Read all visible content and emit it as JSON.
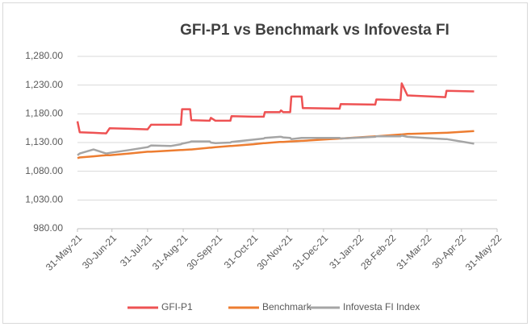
{
  "chart_data": {
    "type": "line",
    "title": "GFI-P1 vs Benchmark vs Infovesta FI",
    "x": [
      "2021-05-31",
      "2021-06-02",
      "2021-06-14",
      "2021-06-25",
      "2021-06-28",
      "2021-07-15",
      "2021-07-31",
      "2021-08-03",
      "2021-08-20",
      "2021-08-29",
      "2021-08-30",
      "2021-09-06",
      "2021-09-07",
      "2021-09-23",
      "2021-09-24",
      "2021-09-28",
      "2021-10-11",
      "2021-10-12",
      "2021-10-31",
      "2021-11-09",
      "2021-11-10",
      "2021-11-23",
      "2021-11-24",
      "2021-11-26",
      "2021-12-02",
      "2021-12-03",
      "2021-12-12",
      "2021-12-13",
      "2022-01-14",
      "2022-01-15",
      "2022-02-14",
      "2022-02-15",
      "2022-03-08",
      "2022-03-09",
      "2022-03-14",
      "2022-04-16",
      "2022-04-17",
      "2022-05-11"
    ],
    "series": [
      {
        "name": "GFI-P1",
        "color": "#ee5253",
        "values": [
          1167,
          1148,
          1147,
          1146,
          1155,
          1154,
          1153,
          1161,
          1161,
          1161,
          1188,
          1188,
          1169,
          1168,
          1173,
          1168,
          1168,
          1176,
          1175,
          1175,
          1183,
          1183,
          1186,
          1183,
          1183,
          1210,
          1210,
          1190,
          1189,
          1197,
          1196,
          1205,
          1204,
          1233,
          1212,
          1209,
          1220,
          1219
        ]
      },
      {
        "name": "Benchmark",
        "color": "#ed7d31",
        "values": [
          1103,
          1104,
          1106,
          1108,
          1108,
          1111,
          1114,
          1114,
          1116,
          1117,
          1117,
          1118,
          1118,
          1121,
          1121,
          1122,
          1124,
          1124,
          1127,
          1129,
          1129,
          1131,
          1131,
          1131,
          1132,
          1132,
          1133,
          1133,
          1137,
          1137,
          1141,
          1141,
          1144,
          1144,
          1145,
          1147,
          1147,
          1150
        ]
      },
      {
        "name": "Infovesta FI Index",
        "color": "#a5a5a5",
        "values": [
          1108,
          1111,
          1118,
          1111,
          1112,
          1117,
          1122,
          1125,
          1124,
          1127,
          1128,
          1131,
          1132,
          1132,
          1130,
          1129,
          1130,
          1131,
          1135,
          1137,
          1138,
          1140,
          1140,
          1139,
          1138,
          1136,
          1138,
          1138,
          1138,
          1137,
          1140,
          1141,
          1141,
          1142,
          1140,
          1136,
          1136,
          1128
        ]
      }
    ],
    "xlim": [
      "2021-05-31",
      "2022-05-31"
    ],
    "xticks": [
      {
        "value": "2021-05-31",
        "label": "31-May-21"
      },
      {
        "value": "2021-06-30",
        "label": "30-Jun-21"
      },
      {
        "value": "2021-07-31",
        "label": "31-Jul-21"
      },
      {
        "value": "2021-08-31",
        "label": "31-Aug-21"
      },
      {
        "value": "2021-09-30",
        "label": "30-Sep-21"
      },
      {
        "value": "2021-10-31",
        "label": "31-Oct-21"
      },
      {
        "value": "2021-11-30",
        "label": "30-Nov-21"
      },
      {
        "value": "2021-12-31",
        "label": "31-Dec-21"
      },
      {
        "value": "2022-01-31",
        "label": "31-Jan-22"
      },
      {
        "value": "2022-02-28",
        "label": "28-Feb-22"
      },
      {
        "value": "2022-03-31",
        "label": "31-Mar-22"
      },
      {
        "value": "2022-04-30",
        "label": "30-Apr-22"
      },
      {
        "value": "2022-05-31",
        "label": "31-May-22"
      }
    ],
    "ylim": [
      980,
      1280
    ],
    "yticks": [
      {
        "value": 980,
        "label": "980.00"
      },
      {
        "value": 1030,
        "label": "1,030.00"
      },
      {
        "value": 1080,
        "label": "1,080.00"
      },
      {
        "value": 1130,
        "label": "1,130.00"
      },
      {
        "value": 1180,
        "label": "1,180.00"
      },
      {
        "value": 1230,
        "label": "1,230.00"
      },
      {
        "value": 1280,
        "label": "1,280.00"
      }
    ],
    "grid": true,
    "legend": "bottom"
  }
}
